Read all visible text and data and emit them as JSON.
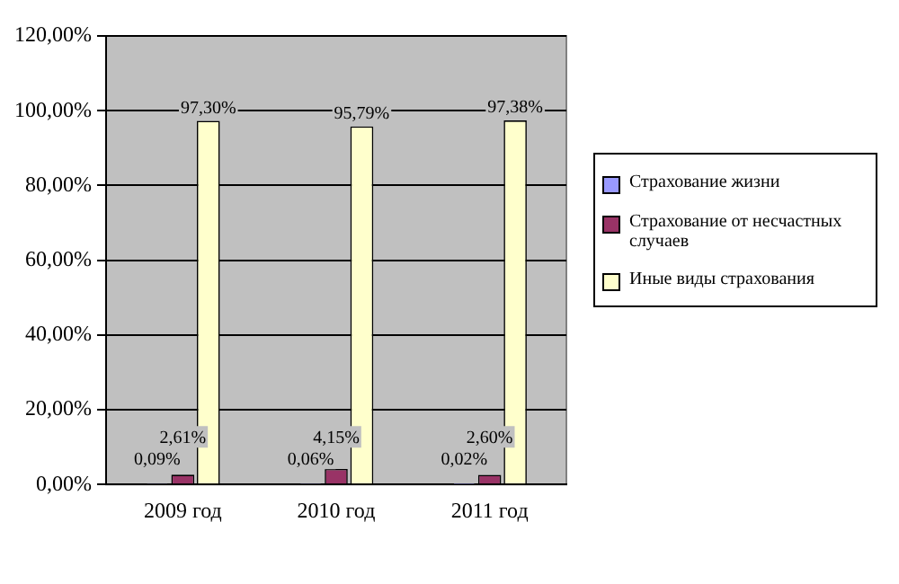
{
  "chart_data": {
    "type": "bar",
    "categories": [
      "2009 год",
      "2010 год",
      "2011 год"
    ],
    "series": [
      {
        "name": "Страхование жизни",
        "color": "#9999ff",
        "values": [
          0.09,
          0.06,
          0.02
        ],
        "value_labels": [
          "0,09%",
          "0,06%",
          "0,02%"
        ]
      },
      {
        "name": "Страхование от несчастных случаев",
        "color": "#993366",
        "values": [
          2.61,
          4.15,
          2.6
        ],
        "value_labels": [
          "2,61%",
          "4,15%",
          "2,60%"
        ]
      },
      {
        "name": "Иные виды страхования",
        "color": "#ffffcc",
        "values": [
          97.3,
          95.79,
          97.38
        ],
        "value_labels": [
          "97,30%",
          "95,79%",
          "97,38%"
        ]
      }
    ],
    "ylim": [
      0,
      120
    ],
    "yticks": [
      {
        "value": 0,
        "label": "0,00%"
      },
      {
        "value": 20,
        "label": "20,00%"
      },
      {
        "value": 40,
        "label": "40,00%"
      },
      {
        "value": 60,
        "label": "60,00%"
      },
      {
        "value": 80,
        "label": "80,00%"
      },
      {
        "value": 100,
        "label": "100,00%"
      },
      {
        "value": 120,
        "label": "120,00%"
      }
    ],
    "grid": "y",
    "legend": "right"
  }
}
